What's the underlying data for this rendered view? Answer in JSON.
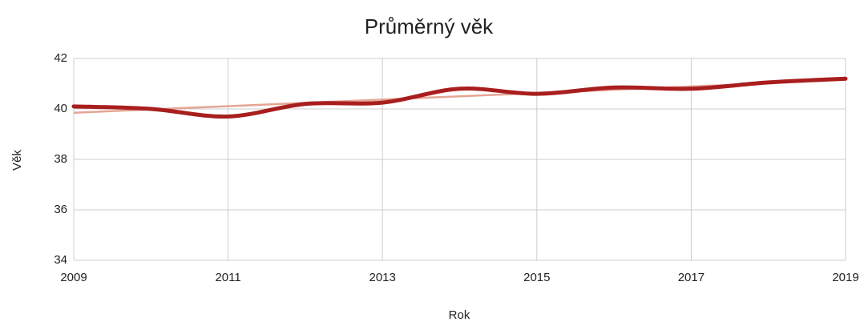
{
  "chart_data": {
    "type": "line",
    "title": "Průměrný věk",
    "xlabel": "Rok",
    "ylabel": "Věk",
    "x": [
      2009,
      2010,
      2011,
      2012,
      2013,
      2014,
      2015,
      2016,
      2017,
      2018,
      2019
    ],
    "series": [
      {
        "color": "#a91e1e",
        "values": [
          40.1,
          40.0,
          39.7,
          40.2,
          40.25,
          40.8,
          40.6,
          40.85,
          40.8,
          41.05,
          41.2
        ]
      }
    ],
    "trendline": {
      "color": "#e4a594",
      "x": [
        2009,
        2019
      ],
      "values": [
        39.85,
        41.15
      ]
    },
    "xlim": [
      2009,
      2019
    ],
    "xticks": [
      2009,
      2011,
      2013,
      2015,
      2017,
      2019
    ],
    "ylim": [
      34,
      42
    ],
    "yticks": [
      34,
      36,
      38,
      40,
      42
    ],
    "grid": true,
    "smooth": true
  }
}
